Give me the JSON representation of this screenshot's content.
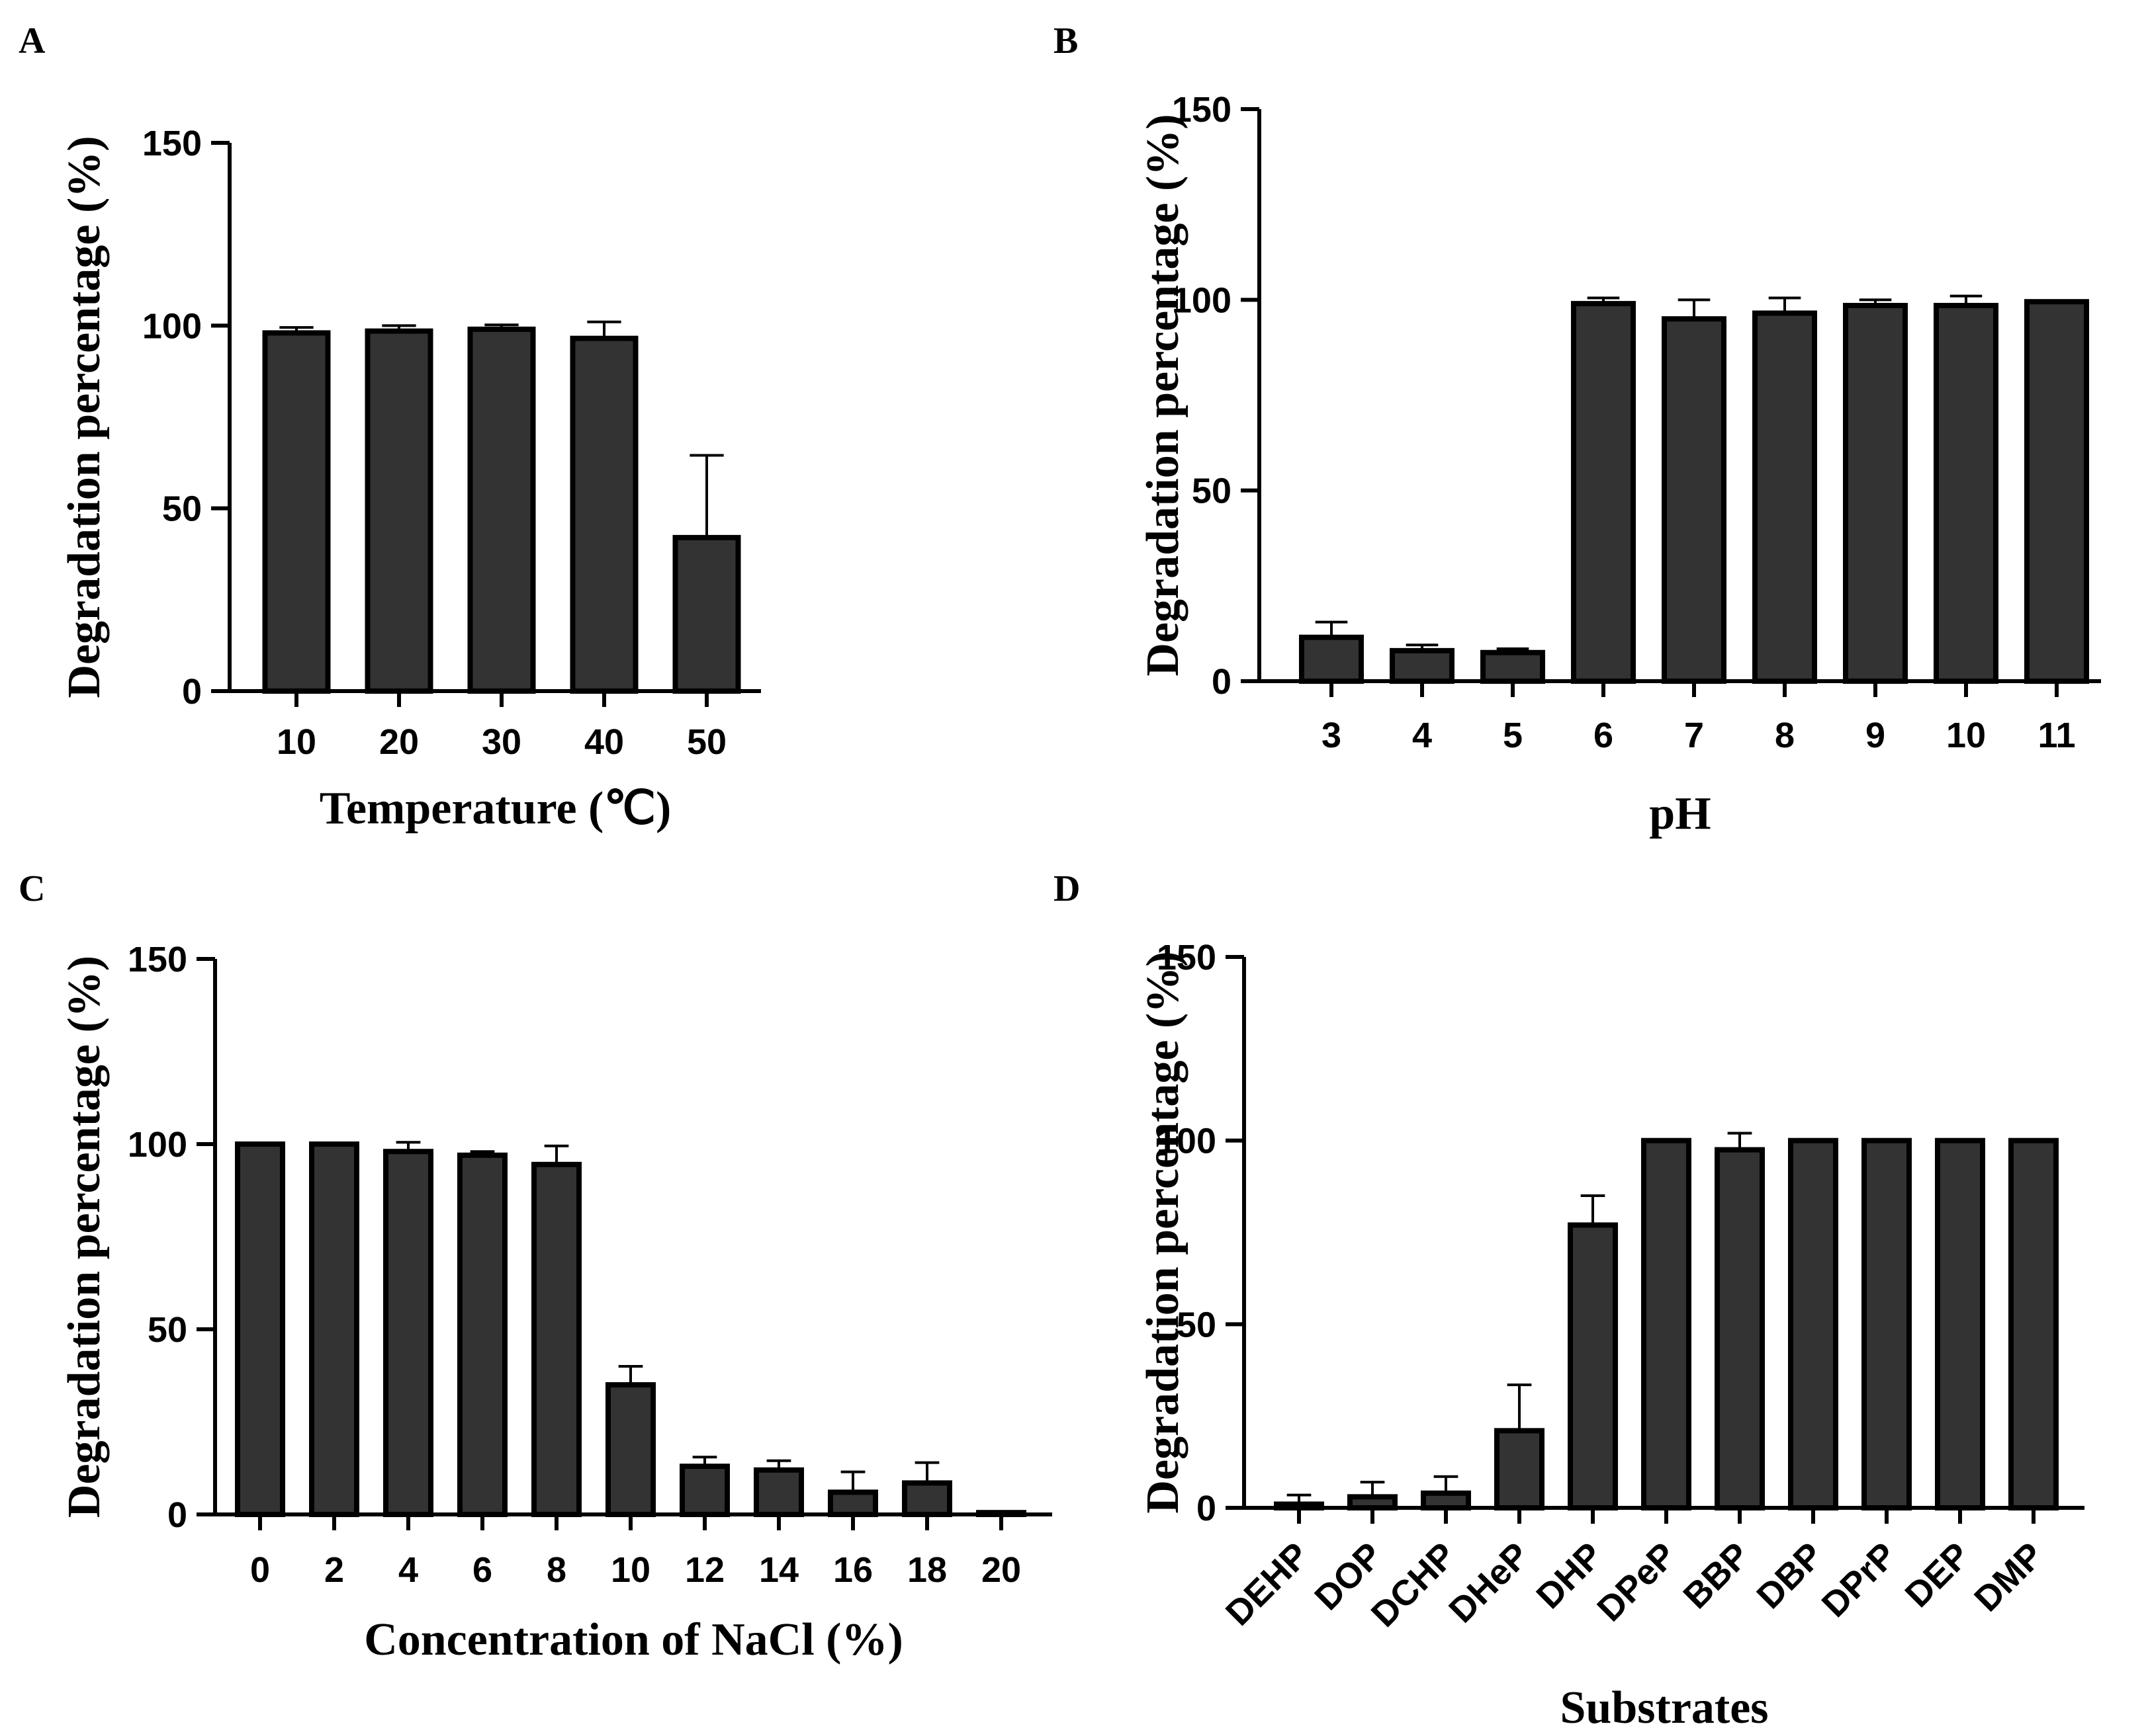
{
  "chart_data": [
    {
      "id": "A",
      "type": "bar",
      "panel_label": "A",
      "categories": [
        "10",
        "20",
        "30",
        "40",
        "50"
      ],
      "values": [
        98,
        98.5,
        99,
        96.5,
        42
      ],
      "errors": [
        1.5,
        1.5,
        1.2,
        4.5,
        22.5
      ],
      "xlabel": "Temperature (℃)",
      "ylabel": "Degradation percentage (%)",
      "ylim": [
        0,
        150
      ],
      "yticks": [
        "0",
        "50",
        "100",
        "150"
      ]
    },
    {
      "id": "B",
      "type": "bar",
      "panel_label": "B",
      "categories": [
        "3",
        "4",
        "5",
        "6",
        "7",
        "8",
        "9",
        "10",
        "11"
      ],
      "values": [
        11.5,
        8,
        7.5,
        99,
        95,
        96.5,
        98.5,
        98.5,
        99.5
      ],
      "errors": [
        4,
        1.5,
        1,
        1.5,
        5,
        4,
        1.5,
        2.5,
        0
      ],
      "xlabel": "pH",
      "ylabel": "Degradation percentage (%)",
      "ylim": [
        0,
        150
      ],
      "yticks": [
        "0",
        "50",
        "100",
        "150"
      ]
    },
    {
      "id": "C",
      "type": "bar",
      "panel_label": "C",
      "categories": [
        "0",
        "2",
        "4",
        "6",
        "8",
        "10",
        "12",
        "14",
        "16",
        "18",
        "20"
      ],
      "values": [
        100,
        100,
        98,
        97,
        94.5,
        35,
        13,
        12,
        6,
        8.5,
        0.5
      ],
      "errors": [
        0,
        0,
        2.5,
        1,
        5,
        5,
        2.5,
        2.5,
        5.5,
        5.5,
        0
      ],
      "xlabel": "Concentration of NaCl (%)",
      "ylabel": "Degradation percentage (%)",
      "ylim": [
        0,
        150
      ],
      "yticks": [
        "0",
        "50",
        "100",
        "150"
      ]
    },
    {
      "id": "D",
      "type": "bar",
      "panel_label": "D",
      "categories": [
        "DEHP",
        "DOP",
        "DCHP",
        "DHeP",
        "DHP",
        "DPeP",
        "BBP",
        "DBP",
        "DPrP",
        "DEP",
        "DMP"
      ],
      "values": [
        1,
        3,
        4,
        21,
        77,
        100,
        97.5,
        100,
        100,
        100,
        100
      ],
      "errors": [
        2.5,
        4,
        4.5,
        12.5,
        8,
        0,
        4.5,
        0,
        0,
        0,
        0
      ],
      "xlabel": "Substrates",
      "ylabel": "Degradation percentage (%)",
      "ylim": [
        0,
        150
      ],
      "yticks": [
        "0",
        "50",
        "100",
        "150"
      ]
    }
  ]
}
